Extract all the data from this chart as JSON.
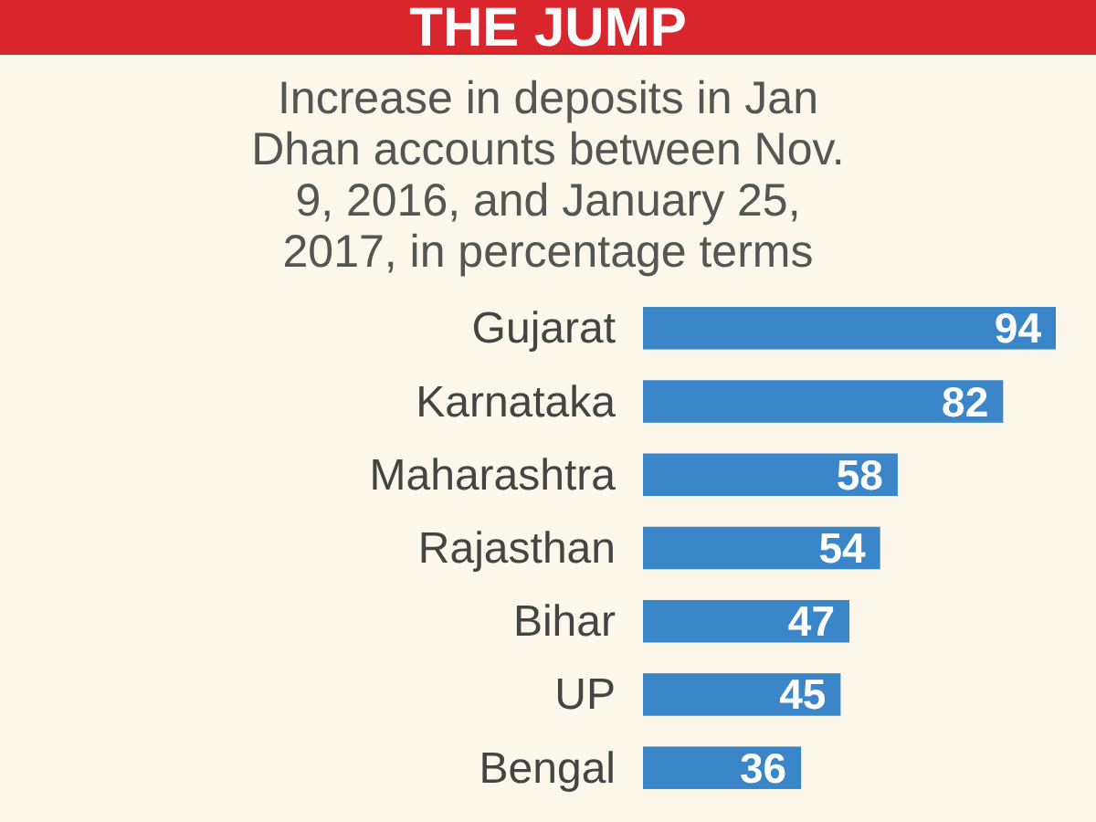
{
  "chart_data": {
    "type": "bar",
    "orientation": "horizontal",
    "title": "THE JUMP",
    "subtitle": "Increase in deposits in Jan Dhan accounts between Nov. 9, 2016, and January 25, 2017, in percentage terms",
    "categories": [
      "Gujarat",
      "Karnataka",
      "Maharashtra",
      "Rajasthan",
      "Bihar",
      "UP",
      "Bengal"
    ],
    "values": [
      94,
      82,
      58,
      54,
      47,
      45,
      36
    ],
    "color": "#3a86c8",
    "data_labels": true
  }
}
